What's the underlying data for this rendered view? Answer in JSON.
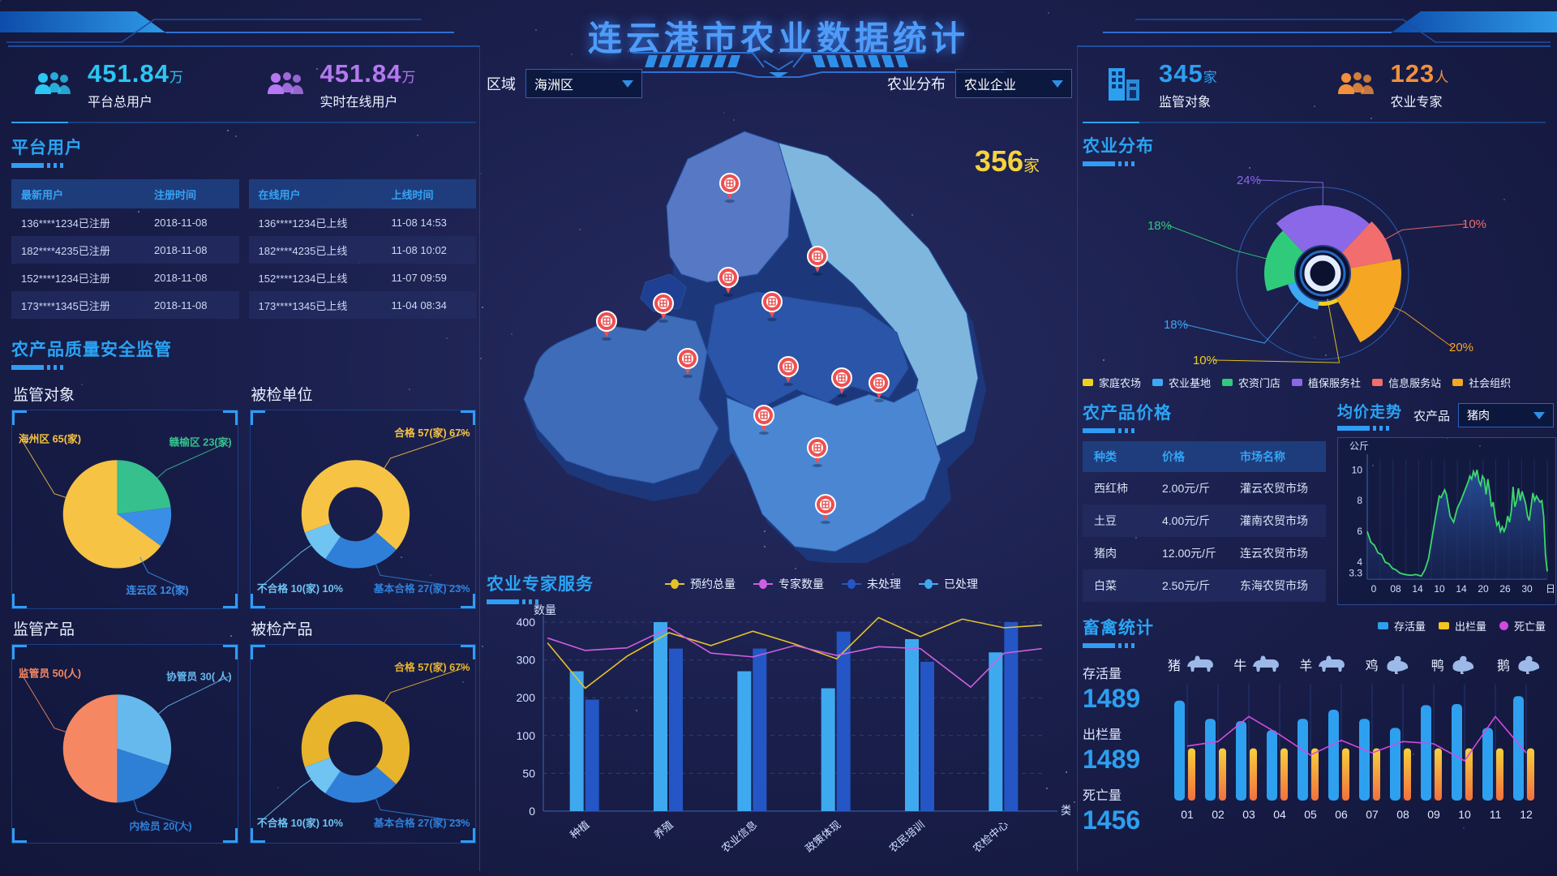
{
  "header": {
    "title": "连云港市农业数据统计"
  },
  "left": {
    "stats": [
      {
        "value": "451.84",
        "unit": "万",
        "label": "平台总用户",
        "color": "#2cc6f3",
        "icon": "users-group-icon"
      },
      {
        "value": "451.84",
        "unit": "万",
        "label": "实时在线用户",
        "color": "#b678f2",
        "icon": "online-users-icon"
      }
    ],
    "platform_users": {
      "title": "平台用户",
      "register_table": {
        "headers": [
          "最新用户",
          "注册时间"
        ],
        "rows": [
          [
            "136****1234已注册",
            "2018-11-08"
          ],
          [
            "182****4235已注册",
            "2018-11-08"
          ],
          [
            "152****1234已注册",
            "2018-11-08"
          ],
          [
            "173****1345已注册",
            "2018-11-08"
          ]
        ]
      },
      "online_table": {
        "headers": [
          "在线用户",
          "上线时间"
        ],
        "rows": [
          [
            "136****1234已上线",
            "11-08  14:53"
          ],
          [
            "182****4235已上线",
            "11-08  10:02"
          ],
          [
            "152****1234已上线",
            "11-07  09:59"
          ],
          [
            "173****1345已上线",
            "11-04  08:34"
          ]
        ]
      }
    },
    "quality_title": "农产品质量安全监管"
  },
  "center": {
    "controls": {
      "region_label": "区域",
      "region_value": "海洲区",
      "dist_label": "农业分布",
      "dist_value": "农业企业"
    },
    "map_count": {
      "value": "356",
      "unit": "家"
    },
    "expert_title": "农业专家服务"
  },
  "right": {
    "stats": [
      {
        "value": "345",
        "unit": "家",
        "label": "监管对象",
        "color": "#2d9ff0",
        "icon": "building-icon"
      },
      {
        "value": "123",
        "unit": "人",
        "label": "农业专家",
        "color": "#f2903c",
        "icon": "experts-icon"
      }
    ],
    "distribution_title": "农业分布",
    "price": {
      "title": "农产品价格",
      "headers": [
        "种类",
        "价格",
        "市场名称"
      ],
      "rows": [
        [
          "西红柿",
          "2.00元/斤",
          "灌云农贸市场"
        ],
        [
          "土豆",
          "4.00元/斤",
          "灌南农贸市场"
        ],
        [
          "猪肉",
          "12.00元/斤",
          "连云农贸市场"
        ],
        [
          "白菜",
          "2.50元/斤",
          "东海农贸市场"
        ]
      ]
    },
    "trend": {
      "title": "均价走势",
      "select_label": "农产品",
      "select_value": "猪肉"
    },
    "livestock": {
      "title": "畜禽统计",
      "stats": [
        {
          "label": "存活量",
          "value": "1489"
        },
        {
          "label": "出栏量",
          "value": "1489"
        },
        {
          "label": "死亡量",
          "value": "1456"
        }
      ],
      "animals": [
        "猪",
        "牛",
        "羊",
        "鸡",
        "鸭",
        "鹅"
      ]
    }
  },
  "chart_data": [
    {
      "id": "supervise-objects",
      "type": "pie",
      "title": "监管对象",
      "slices": [
        {
          "label": "赣榆区",
          "value": 23,
          "text": "赣榆区 23(家)",
          "color": "#35c08e"
        },
        {
          "label": "连云区",
          "value": 12,
          "text": "连云区  12(家)",
          "color": "#3a8ee6"
        },
        {
          "label": "海州区",
          "value": 65,
          "text": "海州区  65(家)",
          "color": "#f6c344"
        }
      ]
    },
    {
      "id": "checked-units",
      "type": "donut",
      "title": "被检单位",
      "slices": [
        {
          "label": "合格",
          "value": 67,
          "text": "合格 57(家) 67%",
          "color": "#f6c344"
        },
        {
          "label": "基本合格",
          "value": 23,
          "text": "基本合格 27(家) 23%",
          "color": "#2f7fd9"
        },
        {
          "label": "不合格",
          "value": 10,
          "text": "不合格 10(家) 10%",
          "color": "#6fc4f2"
        }
      ]
    },
    {
      "id": "supervise-products",
      "type": "pie",
      "title": "监管产品",
      "slices": [
        {
          "label": "协管员",
          "value": 30,
          "text": "协管员 30( 人)",
          "color": "#66b9ed"
        },
        {
          "label": "内检员",
          "value": 20,
          "text": "内检员  20(人)",
          "color": "#2e7fd6"
        },
        {
          "label": "监管员",
          "value": 50,
          "text": "监管员 50(人)",
          "color": "#f58862"
        }
      ]
    },
    {
      "id": "checked-products",
      "type": "donut",
      "title": "被检产品",
      "slices": [
        {
          "label": "合格",
          "value": 67,
          "text": "合格 57(家) 67%",
          "color": "#e8b42c"
        },
        {
          "label": "基本合格",
          "value": 23,
          "text": "基本合格 27(家) 23%",
          "color": "#2f7fd9"
        },
        {
          "label": "不合格",
          "value": 10,
          "text": "不合格 10(家) 10%",
          "color": "#6fc4f2"
        }
      ]
    },
    {
      "id": "expert-service",
      "type": "bar-line",
      "title": "农业专家服务",
      "ylabel": "数量",
      "xlabel": "类型",
      "yticks": [
        0,
        50,
        100,
        200,
        300,
        400
      ],
      "categories": [
        "种植",
        "养殖",
        "农业信息",
        "政策体现",
        "农民培训",
        "农检中心"
      ],
      "bars": [
        {
          "name": "已处理",
          "color": "#3fa9f0",
          "values": [
            270,
            400,
            270,
            225,
            355,
            320
          ]
        },
        {
          "name": "未处理",
          "color": "#2457c5",
          "values": [
            195,
            330,
            330,
            375,
            295,
            400
          ]
        }
      ],
      "lines": [
        {
          "name": "预约总量",
          "color": "#e6c229",
          "points": [
            [
              -0.45,
              345
            ],
            [
              0,
              225
            ],
            [
              0.5,
              310
            ],
            [
              1,
              372
            ],
            [
              1.5,
              338
            ],
            [
              2,
              376
            ],
            [
              2.5,
              342
            ],
            [
              3,
              303
            ],
            [
              3.5,
              412
            ],
            [
              4,
              362
            ],
            [
              4.5,
              408
            ],
            [
              5,
              385
            ],
            [
              5.45,
              392
            ]
          ]
        },
        {
          "name": "专家数量",
          "color": "#cf5fe0",
          "points": [
            [
              -0.45,
              358
            ],
            [
              0,
              325
            ],
            [
              0.5,
              332
            ],
            [
              1,
              385
            ],
            [
              1.5,
              318
            ],
            [
              2,
              308
            ],
            [
              2.5,
              338
            ],
            [
              3,
              312
            ],
            [
              3.5,
              335
            ],
            [
              4,
              330
            ],
            [
              4.6,
              228
            ],
            [
              5,
              318
            ],
            [
              5.45,
              330
            ]
          ]
        }
      ],
      "legend": [
        "预约总量",
        "专家数量",
        "未处理",
        "已处理"
      ]
    },
    {
      "id": "agri-distribution",
      "type": "rose",
      "title": "农业分布",
      "slices": [
        {
          "label": "植保服务社",
          "pct": "24%",
          "value": 24,
          "color": "#8b68e8"
        },
        {
          "label": "信息服务站",
          "pct": "10%",
          "value": 10,
          "color": "#f26d6d"
        },
        {
          "label": "社会组织",
          "pct": "20%",
          "value": 20,
          "color": "#f5a623"
        },
        {
          "label": "家庭农场",
          "pct": "10%",
          "value": 10,
          "color": "#f0d01f"
        },
        {
          "label": "农业基地",
          "pct": "18%",
          "value": 18,
          "color": "#3da8f5"
        },
        {
          "label": "农资门店",
          "pct": "18%",
          "value": 18,
          "color": "#2fcb7a"
        }
      ],
      "legend": [
        {
          "label": "家庭农场",
          "color": "#f0d01f"
        },
        {
          "label": "农业基地",
          "color": "#3da8f5"
        },
        {
          "label": "农资门店",
          "color": "#2fcb7a"
        },
        {
          "label": "植保服务社",
          "color": "#8b68e8"
        },
        {
          "label": "信息服务站",
          "color": "#f26d6d"
        },
        {
          "label": "社会组织",
          "color": "#f5a623"
        }
      ]
    },
    {
      "id": "price-trend",
      "type": "area-line",
      "title": "均价走势",
      "ylabel": "公斤",
      "xlabel": "日期",
      "color": "#3bd96b",
      "yticks": [
        10,
        8,
        6,
        4,
        3.3
      ],
      "xticks": [
        "0",
        "08",
        "14",
        "10",
        "14",
        "20",
        "26",
        "30"
      ],
      "points": [
        [
          0,
          6.0
        ],
        [
          2,
          5.3
        ],
        [
          4,
          5.1
        ],
        [
          6,
          4.6
        ],
        [
          8,
          4.5
        ],
        [
          10,
          4.0
        ],
        [
          12,
          3.9
        ],
        [
          14,
          3.6
        ],
        [
          16,
          3.5
        ],
        [
          18,
          3.3
        ],
        [
          21,
          3.2
        ],
        [
          24,
          3.15
        ],
        [
          27,
          3.2
        ],
        [
          30,
          3.1
        ],
        [
          32,
          3.5
        ],
        [
          34,
          4.2
        ],
        [
          36,
          5.6
        ],
        [
          38,
          7.0
        ],
        [
          40,
          8.3
        ],
        [
          41,
          8.2
        ],
        [
          43,
          8.7
        ],
        [
          44,
          8.4
        ],
        [
          46,
          7.0
        ],
        [
          48,
          6.6
        ],
        [
          50,
          7.5
        ],
        [
          52,
          8.0
        ],
        [
          54,
          8.6
        ],
        [
          56,
          9.2
        ],
        [
          57,
          9.6
        ],
        [
          58,
          9.4
        ],
        [
          59,
          9.9
        ],
        [
          60,
          9.6
        ],
        [
          61,
          10.0
        ],
        [
          62,
          9.3
        ],
        [
          63,
          9.0
        ],
        [
          64,
          9.6
        ],
        [
          65,
          9.4
        ],
        [
          66,
          8.4
        ],
        [
          67,
          9.4
        ],
        [
          68,
          8.6
        ],
        [
          69,
          7.6
        ],
        [
          70,
          7.9
        ],
        [
          71,
          7.0
        ],
        [
          72,
          6.4
        ],
        [
          73,
          6.6
        ],
        [
          74,
          6.0
        ],
        [
          75,
          6.3
        ],
        [
          76,
          6.0
        ],
        [
          77,
          6.3
        ],
        [
          78,
          7.0
        ],
        [
          79,
          6.6
        ],
        [
          80,
          7.3
        ],
        [
          81,
          8.9
        ],
        [
          82,
          7.6
        ],
        [
          83,
          8.0
        ],
        [
          84,
          8.8
        ],
        [
          85,
          8.0
        ],
        [
          86,
          8.6
        ],
        [
          87,
          8.2
        ],
        [
          88,
          7.8
        ],
        [
          89,
          7.0
        ],
        [
          90,
          6.7
        ],
        [
          92,
          8.5
        ],
        [
          93,
          8.0
        ],
        [
          94,
          8.3
        ],
        [
          96,
          7.9
        ],
        [
          97,
          8.0
        ],
        [
          98,
          7.0
        ],
        [
          99,
          4.5
        ],
        [
          100,
          3.4
        ]
      ]
    },
    {
      "id": "livestock",
      "type": "bar-line",
      "title": "畜禽统计",
      "categories": [
        "01",
        "02",
        "03",
        "04",
        "05",
        "06",
        "07",
        "08",
        "09",
        "10",
        "11",
        "12"
      ],
      "bars": [
        {
          "name": "存活量",
          "color": "#2ea0f0",
          "values": [
            88,
            72,
            70,
            62,
            72,
            80,
            72,
            64,
            84,
            85,
            64,
            92
          ]
        },
        {
          "name": "出栏量",
          "color": "#f2c522",
          "values": [
            46,
            46,
            46,
            46,
            46,
            46,
            46,
            46,
            46,
            46,
            46,
            46
          ]
        }
      ],
      "lines": [
        {
          "name": "死亡量",
          "color": "#d24ae0",
          "values": [
            48,
            52,
            74,
            58,
            40,
            53,
            42,
            52,
            50,
            35,
            74,
            42
          ]
        }
      ]
    }
  ]
}
